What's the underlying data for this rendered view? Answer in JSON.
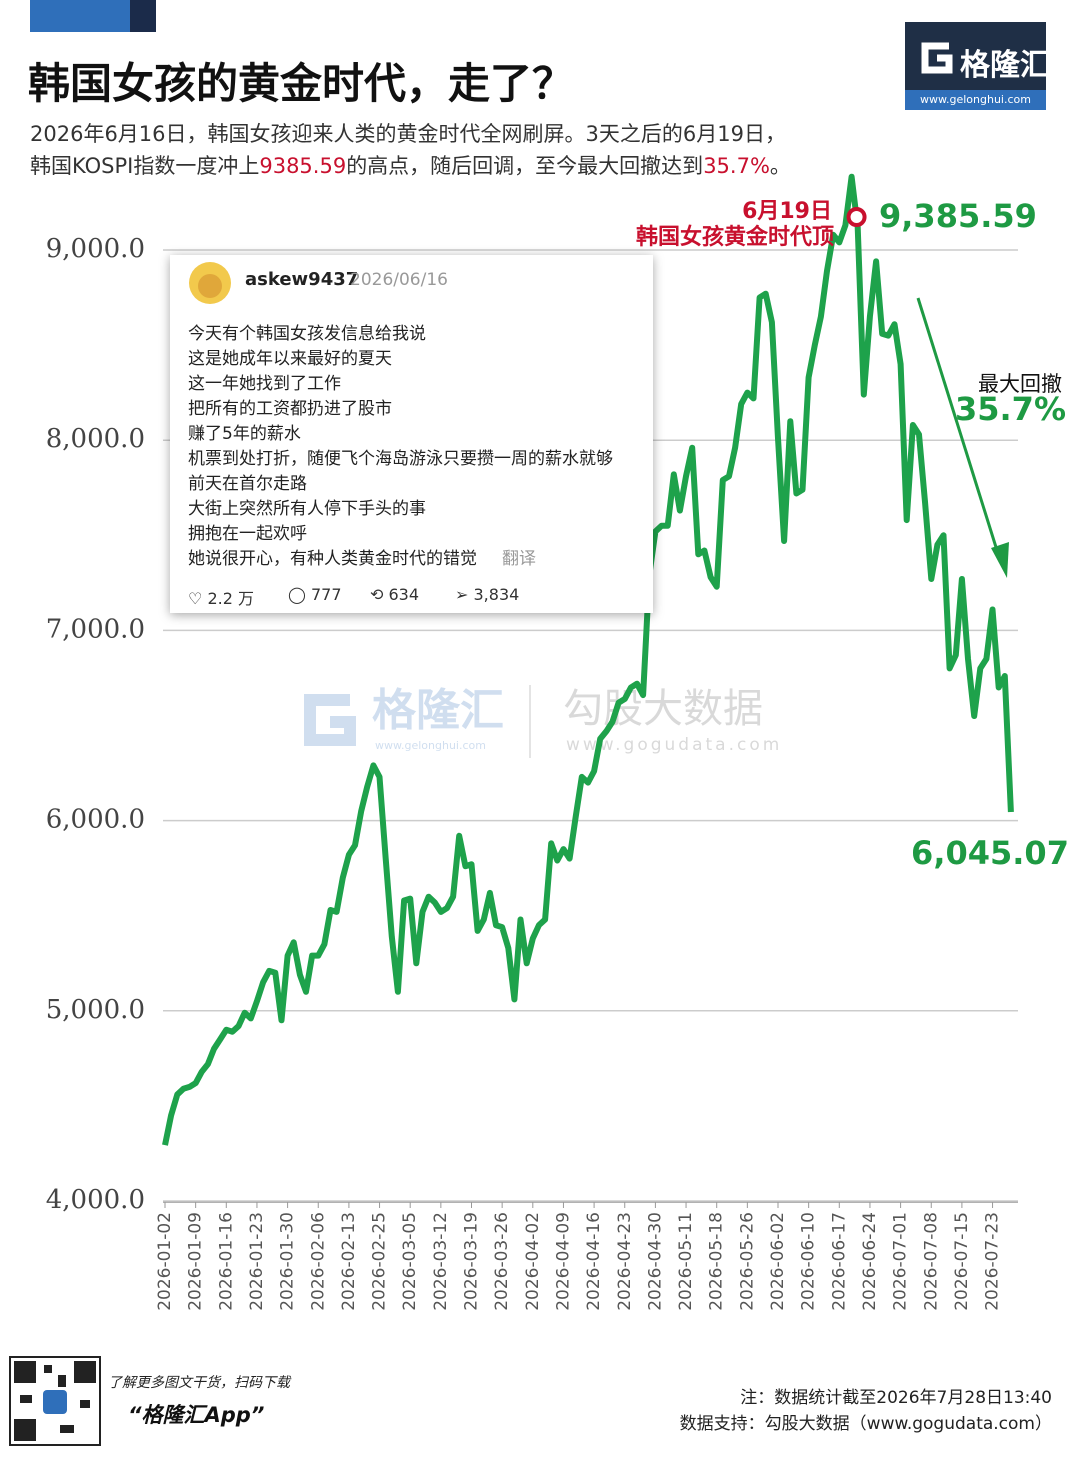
{
  "header": {
    "title": "韩国女孩的黄金时代，走了？",
    "subtitle_line1": "2026年6月16日，韩国女孩迎来人类的黄金时代全网刷屏。3天之后的6月19日，",
    "subtitle_line2": [
      "韩国KOSPI指数一度冲上",
      "9385.59",
      "的高点，随后回调，至今最大回撤达到",
      "35.7%",
      "。"
    ]
  },
  "logo": {
    "name": "格隆汇",
    "url": "www.gelonghui.com"
  },
  "chart_data": {
    "type": "line",
    "color": "#1ea24b",
    "grid": true,
    "categories": [
      "2026-01-02",
      null,
      null,
      null,
      null,
      "2026-01-09",
      null,
      null,
      null,
      null,
      "2026-01-16",
      null,
      null,
      null,
      null,
      "2026-01-23",
      null,
      null,
      null,
      null,
      "2026-01-30",
      null,
      null,
      null,
      null,
      "2026-02-06",
      null,
      null,
      null,
      null,
      "2026-02-13",
      null,
      null,
      null,
      null,
      "2026-02-25",
      null,
      null,
      null,
      null,
      "2026-03-05",
      null,
      null,
      null,
      null,
      "2026-03-12",
      null,
      null,
      null,
      null,
      "2026-03-19",
      null,
      null,
      null,
      null,
      "2026-03-26",
      null,
      null,
      null,
      null,
      "2026-04-02",
      null,
      null,
      null,
      null,
      "2026-04-09",
      null,
      null,
      null,
      null,
      "2026-04-16",
      null,
      null,
      null,
      null,
      "2026-04-23",
      null,
      null,
      null,
      null,
      "2026-04-30",
      null,
      null,
      null,
      null,
      "2026-05-11",
      null,
      null,
      null,
      null,
      "2026-05-18",
      null,
      null,
      null,
      null,
      "2026-05-26",
      null,
      null,
      null,
      null,
      "2026-06-02",
      null,
      null,
      null,
      null,
      "2026-06-10",
      null,
      null,
      null,
      null,
      "2026-06-17",
      null,
      null,
      null,
      null,
      "2026-06-24",
      null,
      null,
      null,
      null,
      "2026-07-01",
      null,
      null,
      null,
      null,
      "2026-07-08",
      null,
      null,
      null,
      null,
      "2026-07-15",
      null,
      null,
      null,
      null,
      "2026-07-23",
      null,
      null,
      null
    ],
    "values": [
      4294,
      4450,
      4560,
      4590,
      4600,
      4620,
      4680,
      4720,
      4800,
      4850,
      4900,
      4890,
      4920,
      4990,
      4960,
      5050,
      5150,
      5210,
      5200,
      4950,
      5290,
      5360,
      5190,
      5100,
      5290,
      5290,
      5350,
      5530,
      5520,
      5700,
      5820,
      5870,
      6050,
      6180,
      6290,
      6230,
      5800,
      5390,
      5100,
      5580,
      5590,
      5250,
      5520,
      5600,
      5570,
      5520,
      5540,
      5600,
      5920,
      5760,
      5770,
      5420,
      5480,
      5620,
      5450,
      5440,
      5330,
      5060,
      5480,
      5250,
      5380,
      5450,
      5480,
      5880,
      5790,
      5850,
      5800,
      6020,
      6230,
      6200,
      6260,
      6430,
      6470,
      6520,
      6620,
      6640,
      6700,
      6720,
      6660,
      7290,
      7520,
      7550,
      7550,
      7820,
      7630,
      7810,
      7960,
      7400,
      7420,
      7280,
      7230,
      7790,
      7810,
      7960,
      8190,
      8250,
      8220,
      8750,
      8770,
      8620,
      8010,
      7470,
      8100,
      7720,
      7740,
      8330,
      8500,
      8650,
      8890,
      9080,
      9040,
      9130,
      9385.59,
      9120,
      8240,
      8650,
      8940,
      8560,
      8550,
      8610,
      8400,
      7580,
      8080,
      8030,
      7670,
      7270,
      7450,
      7500,
      6800,
      6870,
      7270,
      6850,
      6550,
      6800,
      6850,
      7110,
      6700,
      6760,
      6045.07
    ],
    "ylim": [
      4000,
      9500
    ],
    "yticks": [
      {
        "value": 4000,
        "label": "4,000.0"
      },
      {
        "value": 5000,
        "label": "5,000.0"
      },
      {
        "value": 6000,
        "label": "6,000.0"
      },
      {
        "value": 7000,
        "label": "7,000.0"
      },
      {
        "value": 8000,
        "label": "8,000.0"
      },
      {
        "value": 9000,
        "label": "9,000.0"
      }
    ],
    "annotations": {
      "peak_date": "6月19日",
      "peak_text": "韩国女孩黄金时代顶",
      "peak_label": "9,385.59",
      "last_label": "6,045.07",
      "drawdown_text": "最大回撤",
      "drawdown_value": "35.7%"
    }
  },
  "card": {
    "user": "askew9437",
    "date": "2026/06/16",
    "lines": [
      "今天有个韩国女孩发信息给我说",
      "这是她成年以来最好的夏天",
      "这一年她找到了工作",
      "把所有的工资都扔进了股市",
      "赚了5年的薪水",
      "机票到处打折，随便飞个海岛游泳只要攒一周的薪水就够",
      "前天在首尔走路",
      "大街上突然所有人停下手头的事",
      "拥抱在一起欢呼",
      "她说很开心，有种人类黄金时代的错觉"
    ],
    "translate": "翻译",
    "likes": "2.2 万",
    "replies": "777",
    "reposts": "634",
    "shares": "3,834"
  },
  "watermark": {
    "brand": "格隆汇",
    "brand_url": "www.gelonghui.com",
    "data": "勾股大数据",
    "data_url": "www.gogudata.com"
  },
  "footer": {
    "promo": "了解更多图文干货，扫码下载",
    "app": "“格隆汇App”",
    "note": "注：数据统计截至2026年7月28日13:40",
    "source": "数据支持：勾股大数据（www.gogudata.com）"
  }
}
